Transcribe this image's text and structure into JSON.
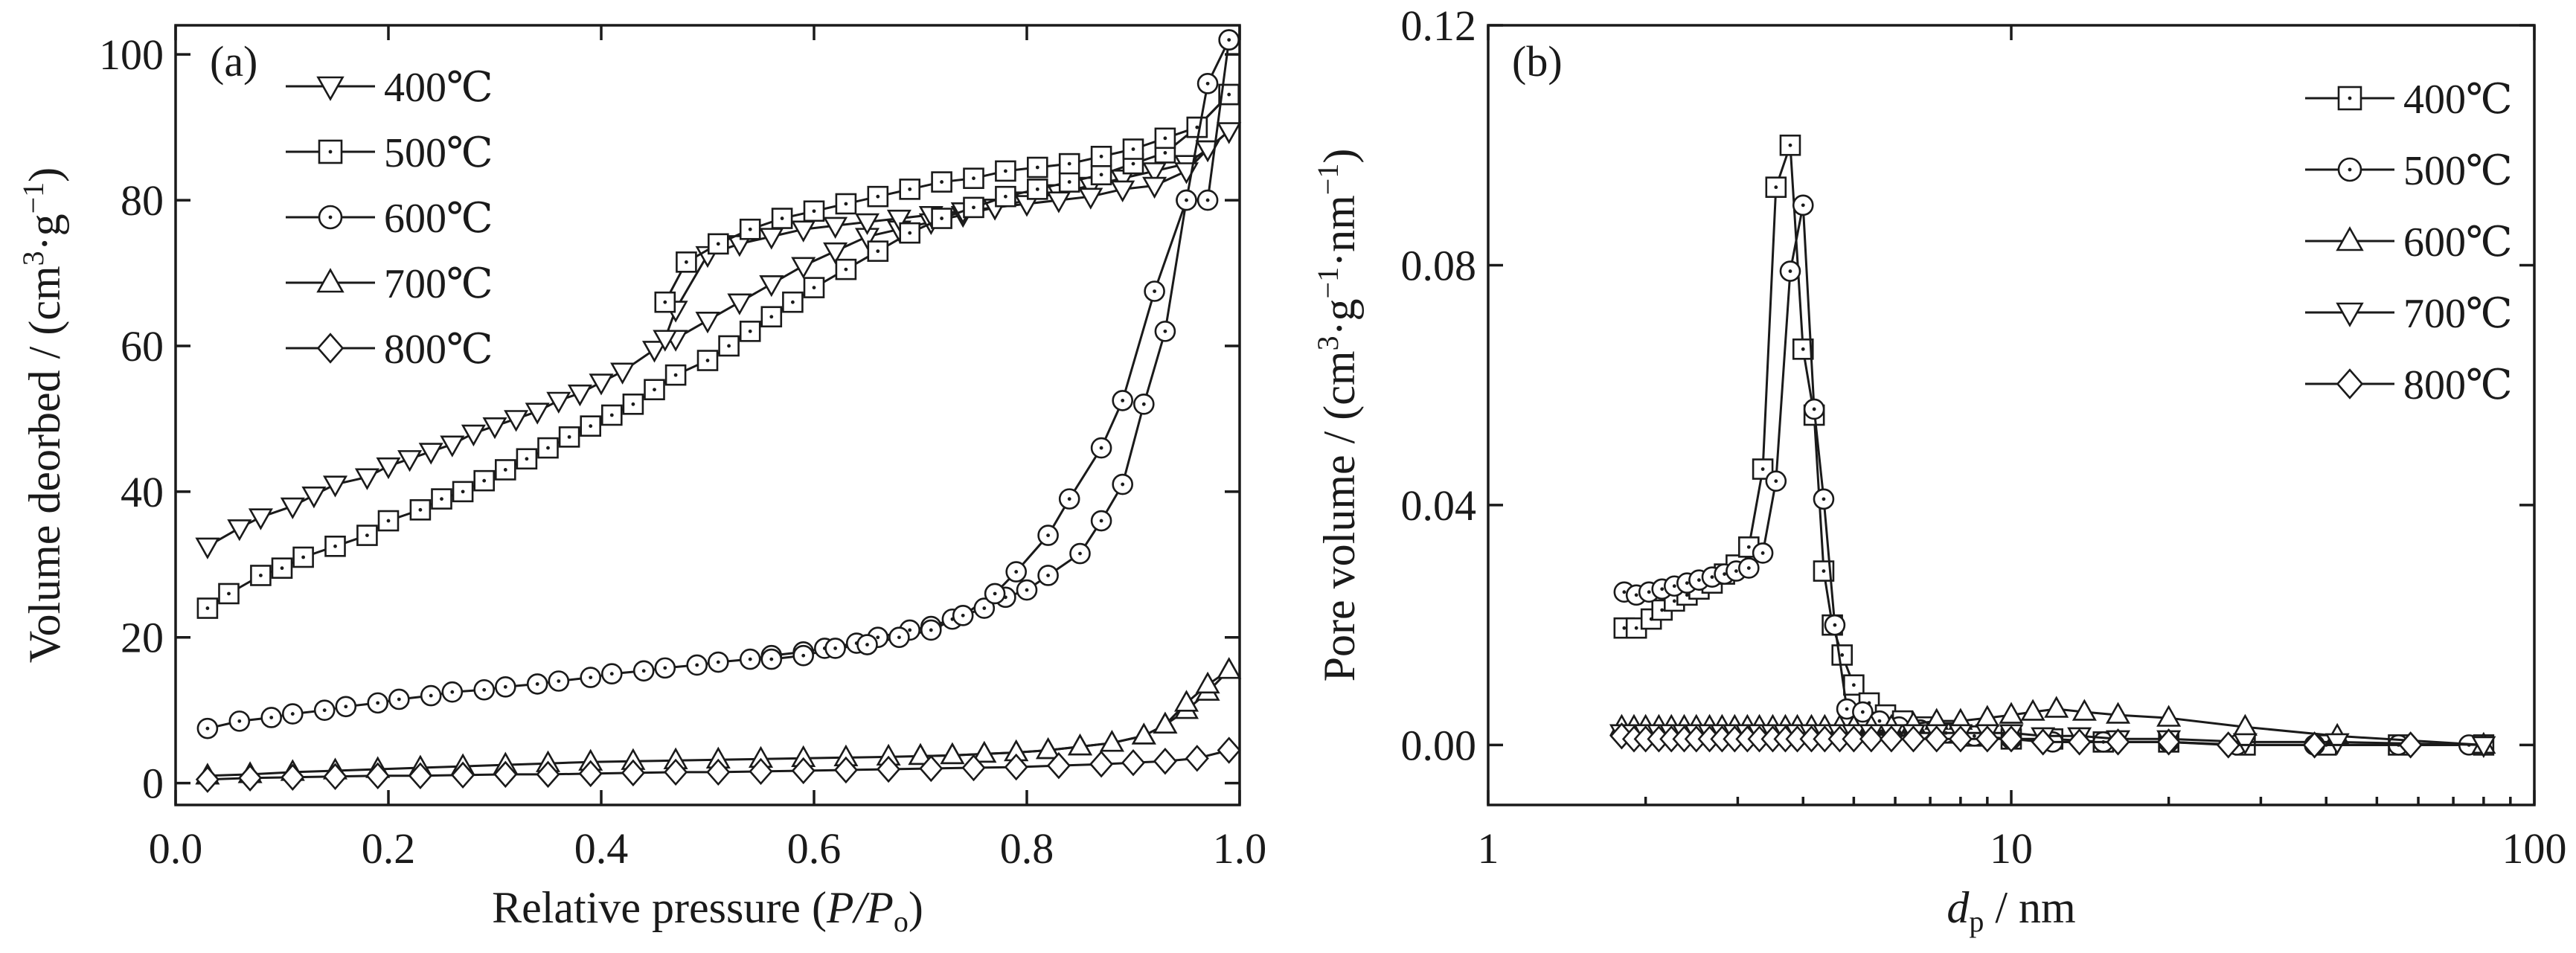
{
  "chart_data": [
    {
      "panel_label": "(a)",
      "type": "line",
      "xlabel": "Relative pressure",
      "xlabel_var": "P/P",
      "xlabel_sub": "o",
      "ylabel": "Volume deorbed / (cm",
      "ylabel_sup1": "3",
      "ylabel_mid": "·g",
      "ylabel_sup2": "−1",
      "ylabel_end": ")",
      "xlim": [
        0.0,
        1.0
      ],
      "ylim": [
        -3,
        104
      ],
      "xticks": [
        0.0,
        0.2,
        0.4,
        0.6,
        0.8,
        1.0
      ],
      "xtick_labels": [
        "0.0",
        "0.2",
        "0.4",
        "0.6",
        "0.8",
        "1.0"
      ],
      "yticks": [
        0,
        20,
        40,
        60,
        80,
        100
      ],
      "ytick_labels": [
        "0",
        "20",
        "40",
        "60",
        "80",
        "100"
      ],
      "legend_position": "top-left",
      "series": [
        {
          "name": "400℃",
          "marker": "triangle-down",
          "adsorption": {
            "x": [
              0.03,
              0.06,
              0.08,
              0.11,
              0.13,
              0.15,
              0.18,
              0.2,
              0.22,
              0.24,
              0.26,
              0.28,
              0.3,
              0.32,
              0.34,
              0.36,
              0.38,
              0.4,
              0.42,
              0.45,
              0.47,
              0.5,
              0.53,
              0.56,
              0.59,
              0.62,
              0.65,
              0.68,
              0.71,
              0.74,
              0.77,
              0.8,
              0.83,
              0.86,
              0.89,
              0.92,
              0.95,
              0.97,
              0.99
            ],
            "y": [
              32.5,
              35,
              36.5,
              38,
              39.5,
              41,
              42,
              43.5,
              44.5,
              45.5,
              46.5,
              48,
              49,
              50,
              51,
              52.5,
              53.5,
              55,
              56.5,
              59.5,
              61,
              63.5,
              66,
              68.5,
              71,
              73,
              75,
              76,
              77,
              78,
              79,
              80,
              81,
              82,
              83,
              84,
              85,
              87,
              89.5
            ]
          },
          "desorption": {
            "x": [
              0.99,
              0.97,
              0.95,
              0.92,
              0.89,
              0.86,
              0.83,
              0.8,
              0.77,
              0.74,
              0.71,
              0.68,
              0.65,
              0.62,
              0.59,
              0.56,
              0.53,
              0.5,
              0.47,
              0.46
            ],
            "y": [
              89.5,
              87,
              84,
              82,
              81.5,
              80.5,
              80,
              79.5,
              79,
              78.5,
              78,
              77.5,
              77,
              76.5,
              76,
              75,
              74,
              72.5,
              65,
              61
            ]
          }
        },
        {
          "name": "500℃",
          "marker": "square",
          "adsorption": {
            "x": [
              0.03,
              0.05,
              0.08,
              0.1,
              0.12,
              0.15,
              0.18,
              0.2,
              0.23,
              0.25,
              0.27,
              0.29,
              0.31,
              0.33,
              0.35,
              0.37,
              0.39,
              0.41,
              0.43,
              0.45,
              0.47,
              0.5,
              0.52,
              0.54,
              0.56,
              0.58,
              0.6,
              0.63,
              0.66,
              0.69,
              0.72,
              0.75,
              0.78,
              0.81,
              0.84,
              0.87,
              0.9,
              0.93,
              0.96,
              0.99
            ],
            "y": [
              24,
              26,
              28.5,
              29.5,
              31,
              32.5,
              34,
              36,
              37.5,
              39,
              40,
              41.5,
              43,
              44.5,
              46,
              47.5,
              49,
              50.5,
              52,
              54,
              56,
              58,
              60,
              62,
              64,
              66,
              68,
              70.5,
              73,
              75.5,
              77.5,
              79,
              80.5,
              81.5,
              82.5,
              83.5,
              85,
              86.5,
              90,
              94.5
            ]
          },
          "desorption": {
            "x": [
              0.99,
              0.96,
              0.93,
              0.9,
              0.87,
              0.84,
              0.81,
              0.78,
              0.75,
              0.72,
              0.69,
              0.66,
              0.63,
              0.6,
              0.57,
              0.54,
              0.51,
              0.48,
              0.46
            ],
            "y": [
              94.5,
              90,
              88.5,
              87,
              86,
              85,
              84.5,
              84,
              83,
              82.5,
              81.5,
              80.5,
              79.5,
              78.5,
              77.5,
              76,
              74,
              71.5,
              66
            ]
          }
        },
        {
          "name": "600℃",
          "marker": "circle",
          "adsorption": {
            "x": [
              0.03,
              0.06,
              0.09,
              0.11,
              0.14,
              0.16,
              0.19,
              0.21,
              0.24,
              0.26,
              0.29,
              0.31,
              0.34,
              0.36,
              0.39,
              0.41,
              0.44,
              0.46,
              0.49,
              0.51,
              0.54,
              0.56,
              0.59,
              0.61,
              0.64,
              0.66,
              0.69,
              0.71,
              0.73,
              0.76,
              0.78,
              0.8,
              0.82,
              0.85,
              0.87,
              0.89,
              0.91,
              0.93,
              0.95,
              0.97,
              0.99
            ],
            "y": [
              7.5,
              8.5,
              9,
              9.5,
              10,
              10.5,
              11,
              11.5,
              12,
              12.5,
              12.8,
              13.2,
              13.6,
              14,
              14.5,
              15,
              15.4,
              15.8,
              16.2,
              16.6,
              17,
              17.5,
              18,
              18.5,
              19.2,
              20,
              21,
              21.5,
              22.5,
              24,
              25.5,
              26.5,
              28.5,
              31.5,
              36,
              41,
              52,
              62,
              80,
              96,
              102
            ]
          },
          "desorption": {
            "x": [
              0.99,
              0.97,
              0.95,
              0.92,
              0.89,
              0.87,
              0.84,
              0.82,
              0.79,
              0.77,
              0.74,
              0.71,
              0.68,
              0.65,
              0.62,
              0.59,
              0.56
            ],
            "y": [
              102,
              80,
              80,
              67.5,
              52.5,
              46,
              39,
              34,
              29,
              26,
              23,
              21,
              20,
              19,
              18.5,
              17.5,
              17
            ]
          }
        },
        {
          "name": "700℃",
          "marker": "triangle-up",
          "adsorption": {
            "x": [
              0.03,
              0.07,
              0.11,
              0.15,
              0.19,
              0.23,
              0.27,
              0.31,
              0.35,
              0.39,
              0.43,
              0.47,
              0.51,
              0.55,
              0.59,
              0.63,
              0.67,
              0.7,
              0.73,
              0.76,
              0.79,
              0.82,
              0.85,
              0.88,
              0.91,
              0.93,
              0.95,
              0.97,
              0.99
            ],
            "y": [
              1,
              1.2,
              1.5,
              1.7,
              1.9,
              2.1,
              2.3,
              2.5,
              2.7,
              2.9,
              3,
              3.1,
              3.2,
              3.3,
              3.4,
              3.5,
              3.6,
              3.7,
              3.8,
              4,
              4.2,
              4.5,
              5,
              5.5,
              6.5,
              8,
              10,
              12.5,
              15.5
            ]
          },
          "desorption": {
            "x": [
              0.99,
              0.97,
              0.95,
              0.93,
              0.91,
              0.88,
              0.85,
              0.82,
              0.79,
              0.76,
              0.73,
              0.7
            ],
            "y": [
              15.5,
              13.5,
              11,
              8,
              6.5,
              5.5,
              5,
              4.5,
              4.2,
              4,
              3.8,
              3.7
            ]
          }
        },
        {
          "name": "800℃",
          "marker": "diamond",
          "adsorption": {
            "x": [
              0.03,
              0.07,
              0.11,
              0.15,
              0.19,
              0.23,
              0.27,
              0.31,
              0.35,
              0.39,
              0.43,
              0.47,
              0.51,
              0.55,
              0.59,
              0.63,
              0.67,
              0.71,
              0.75,
              0.79,
              0.83,
              0.87,
              0.9,
              0.93,
              0.96,
              0.99
            ],
            "y": [
              0.5,
              0.7,
              0.8,
              0.9,
              1,
              1,
              1.1,
              1.2,
              1.2,
              1.3,
              1.4,
              1.5,
              1.5,
              1.6,
              1.7,
              1.8,
              1.9,
              2,
              2.1,
              2.2,
              2.4,
              2.6,
              2.8,
              3,
              3.4,
              4.5
            ]
          }
        }
      ]
    },
    {
      "panel_label": "(b)",
      "type": "line",
      "x_scale": "log",
      "xlabel_var": "d",
      "xlabel_sub": "p",
      "xlabel_unit": " / nm",
      "ylabel": "Pore volume / (cm",
      "ylabel_sup1": "3",
      "ylabel_mid1": "·g",
      "ylabel_sup2": "−1",
      "ylabel_mid2": "·nm",
      "ylabel_sup3": "−1",
      "ylabel_end": ")",
      "xlim": [
        1,
        100
      ],
      "ylim": [
        -0.01,
        0.12
      ],
      "xticks": [
        1,
        10,
        100
      ],
      "xtick_labels": [
        "1",
        "10",
        "100"
      ],
      "yticks": [
        0.0,
        0.04,
        0.08,
        0.12
      ],
      "ytick_labels": [
        "0.00",
        "0.04",
        "0.08",
        "0.12"
      ],
      "legend_position": "top-right",
      "series": [
        {
          "name": "400℃",
          "marker": "square",
          "x": [
            1.82,
            1.92,
            2.05,
            2.15,
            2.27,
            2.4,
            2.53,
            2.68,
            2.83,
            2.98,
            3.15,
            3.35,
            3.55,
            3.78,
            4.0,
            4.2,
            4.38,
            4.55,
            4.75,
            5.0,
            5.35,
            5.75,
            6.2,
            6.8,
            7.5,
            8.5,
            10,
            12,
            15,
            20,
            28,
            40,
            55,
            80
          ],
          "y": [
            0.0195,
            0.0195,
            0.021,
            0.0225,
            0.024,
            0.025,
            0.026,
            0.027,
            0.0285,
            0.03,
            0.033,
            0.046,
            0.093,
            0.1,
            0.066,
            0.055,
            0.029,
            0.02,
            0.015,
            0.01,
            0.007,
            0.005,
            0.004,
            0.003,
            0.002,
            0.0015,
            0.001,
            0.001,
            0.0005,
            0.0005,
            0.0,
            0.0,
            0.0,
            0.0
          ]
        },
        {
          "name": "500℃",
          "marker": "circle",
          "x": [
            1.82,
            1.92,
            2.03,
            2.15,
            2.27,
            2.4,
            2.53,
            2.68,
            2.83,
            2.98,
            3.15,
            3.35,
            3.55,
            3.78,
            4.0,
            4.2,
            4.38,
            4.6,
            4.85,
            5.2,
            5.6,
            6.1,
            6.7,
            7.5,
            8.5,
            10,
            12,
            15,
            20,
            27,
            38,
            55,
            75
          ],
          "y": [
            0.0255,
            0.025,
            0.0255,
            0.026,
            0.0265,
            0.027,
            0.0275,
            0.028,
            0.0285,
            0.029,
            0.0295,
            0.032,
            0.044,
            0.079,
            0.09,
            0.056,
            0.041,
            0.02,
            0.006,
            0.0055,
            0.004,
            0.003,
            0.0025,
            0.002,
            0.0015,
            0.001,
            0.0005,
            0.0005,
            0.0005,
            0.0,
            0.0,
            0.0,
            0.0
          ]
        },
        {
          "name": "600℃",
          "marker": "triangle-up",
          "x": [
            1.8,
            1.9,
            2.0,
            2.12,
            2.24,
            2.37,
            2.5,
            2.65,
            2.8,
            2.96,
            3.13,
            3.3,
            3.5,
            3.7,
            3.9,
            4.15,
            4.4,
            4.7,
            5.0,
            5.4,
            5.9,
            6.5,
            7.2,
            8.0,
            9.0,
            10,
            11,
            12.2,
            13.8,
            16,
            20,
            28,
            42,
            80
          ],
          "y": [
            0.003,
            0.003,
            0.003,
            0.003,
            0.003,
            0.003,
            0.003,
            0.003,
            0.003,
            0.003,
            0.003,
            0.003,
            0.003,
            0.003,
            0.003,
            0.003,
            0.003,
            0.003,
            0.003,
            0.003,
            0.003,
            0.0035,
            0.004,
            0.004,
            0.0045,
            0.005,
            0.0055,
            0.006,
            0.0055,
            0.005,
            0.0045,
            0.003,
            0.0015,
            0.0
          ]
        },
        {
          "name": "700℃",
          "marker": "triangle-down",
          "x": [
            1.8,
            1.9,
            2.0,
            2.12,
            2.24,
            2.37,
            2.5,
            2.65,
            2.8,
            2.96,
            3.13,
            3.3,
            3.5,
            3.7,
            3.9,
            4.15,
            4.4,
            4.7,
            5.0,
            5.4,
            5.9,
            6.5,
            7.2,
            8.0,
            9.0,
            10,
            11.5,
            13.5,
            16,
            20,
            28,
            42,
            80
          ],
          "y": [
            0.002,
            0.002,
            0.002,
            0.002,
            0.002,
            0.002,
            0.002,
            0.002,
            0.002,
            0.002,
            0.002,
            0.002,
            0.002,
            0.002,
            0.002,
            0.002,
            0.002,
            0.002,
            0.002,
            0.002,
            0.002,
            0.002,
            0.002,
            0.002,
            0.002,
            0.002,
            0.0015,
            0.0015,
            0.001,
            0.001,
            0.0005,
            0.0005,
            0.0
          ]
        },
        {
          "name": "800℃",
          "marker": "diamond",
          "x": [
            1.8,
            1.9,
            2.0,
            2.12,
            2.24,
            2.37,
            2.5,
            2.65,
            2.8,
            2.96,
            3.13,
            3.3,
            3.5,
            3.7,
            3.9,
            4.15,
            4.4,
            4.7,
            5.0,
            5.4,
            5.9,
            6.5,
            7.2,
            8.0,
            9.0,
            10,
            11.5,
            13.5,
            16,
            20,
            26,
            38,
            58
          ],
          "y": [
            0.0015,
            0.001,
            0.001,
            0.001,
            0.001,
            0.001,
            0.001,
            0.001,
            0.001,
            0.001,
            0.001,
            0.001,
            0.001,
            0.001,
            0.001,
            0.001,
            0.001,
            0.001,
            0.001,
            0.001,
            0.001,
            0.001,
            0.001,
            0.001,
            0.001,
            0.001,
            0.0005,
            0.0005,
            0.0005,
            0.0005,
            0.0,
            0.0,
            0.0
          ]
        }
      ]
    }
  ]
}
